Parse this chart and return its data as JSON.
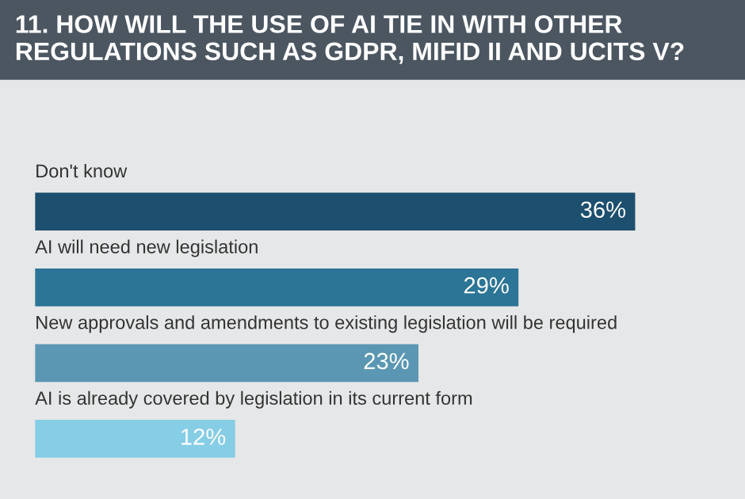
{
  "chart_data": {
    "type": "bar",
    "orientation": "horizontal",
    "title": "11. HOW WILL THE USE OF AI TIE IN WITH OTHER REGULATIONS SUCH AS GDPR, MIFID II AND UCITS V?",
    "categories": [
      "Don't know",
      "AI will need new legislation",
      "New approvals and amendments to existing legislation will be required",
      "AI is already covered by legislation in its current form"
    ],
    "values": [
      36,
      29,
      23,
      12
    ],
    "colors": [
      "#1d4f6e",
      "#2c7597",
      "#5b97b3",
      "#86cde6"
    ],
    "value_labels": [
      "36%",
      "29%",
      "23%",
      "12%"
    ]
  }
}
